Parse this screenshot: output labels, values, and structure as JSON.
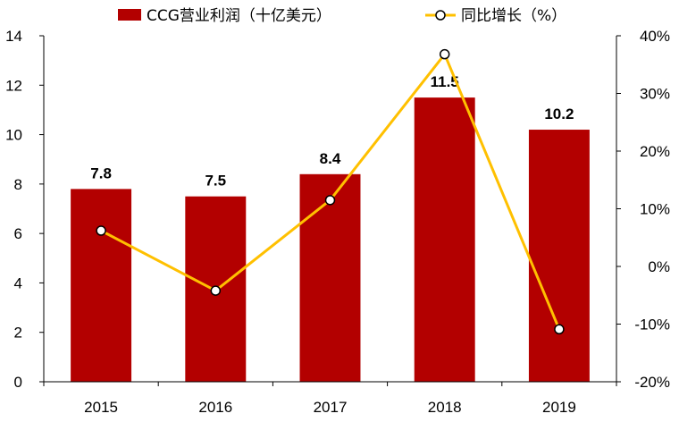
{
  "chart_data": {
    "type": "bar+line",
    "categories": [
      "2015",
      "2016",
      "2017",
      "2018",
      "2019"
    ],
    "series": [
      {
        "name": "CCG营业利润（十亿美元）",
        "type": "bar",
        "axis": "left",
        "values": [
          7.8,
          7.5,
          8.4,
          11.5,
          10.2
        ],
        "color": "#B30000"
      },
      {
        "name": "同比增长（%）",
        "type": "line",
        "axis": "right",
        "values": [
          6.2,
          -4.2,
          11.5,
          36.8,
          -10.9
        ],
        "color": "#FFC000"
      }
    ],
    "left_axis": {
      "ylim": [
        0,
        14
      ],
      "ticks": [
        "0",
        "2",
        "4",
        "6",
        "8",
        "10",
        "12",
        "14"
      ]
    },
    "right_axis": {
      "ylim": [
        -20,
        40
      ],
      "ticks": [
        "-20%",
        "-10%",
        "0%",
        "10%",
        "20%",
        "30%",
        "40%"
      ]
    },
    "data_labels": [
      "7.8",
      "7.5",
      "8.4",
      "11.5",
      "10.2"
    ],
    "legend": {
      "position": "top",
      "items": [
        "CCG营业利润（十亿美元）",
        "同比增长（%）"
      ]
    },
    "grid": false
  }
}
